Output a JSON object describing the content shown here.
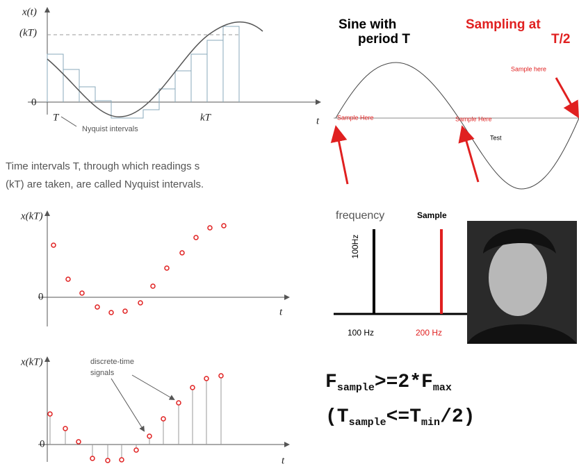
{
  "top_plot": {
    "y_label": "x(t)",
    "y_value_label": "(kT)",
    "zero": "0",
    "interval": "T",
    "kt": "kT",
    "x_label": "t",
    "note": "Nyquist intervals"
  },
  "caption": {
    "line1": "Time intervals T, through which readings s",
    "line2": "(kT) are taken, are called Nyquist intervals."
  },
  "middle_plot": {
    "y_label": "x(kT)",
    "zero": "0",
    "x_label": "t"
  },
  "bottom_plot": {
    "y_label": "x(kT)",
    "note_line1": "discrete-time",
    "note_line2": "signals",
    "zero": "0",
    "x_label": "t"
  },
  "sine_panel": {
    "title_line1": "Sine with",
    "title_line2": "period T",
    "sampling_line1": "Sampling at",
    "sampling_line2": "T/2",
    "sample_left": "Sample Here",
    "sample_mid": "Sample Here",
    "sample_right": "Sample here",
    "test": "Test"
  },
  "frequency_panel": {
    "title": "frequency",
    "sample": "Sample",
    "axis_label": "100Hz",
    "tick1": "100 Hz",
    "tick2": "200 Hz"
  },
  "formula": {
    "line1": {
      "f": "F",
      "sub1": "sample",
      "op": ">=2*F",
      "sub2": "max"
    },
    "line2": {
      "open": "(T",
      "sub1": "sample",
      "op": "<=T",
      "sub2": "min",
      "close": "/2)"
    }
  }
}
